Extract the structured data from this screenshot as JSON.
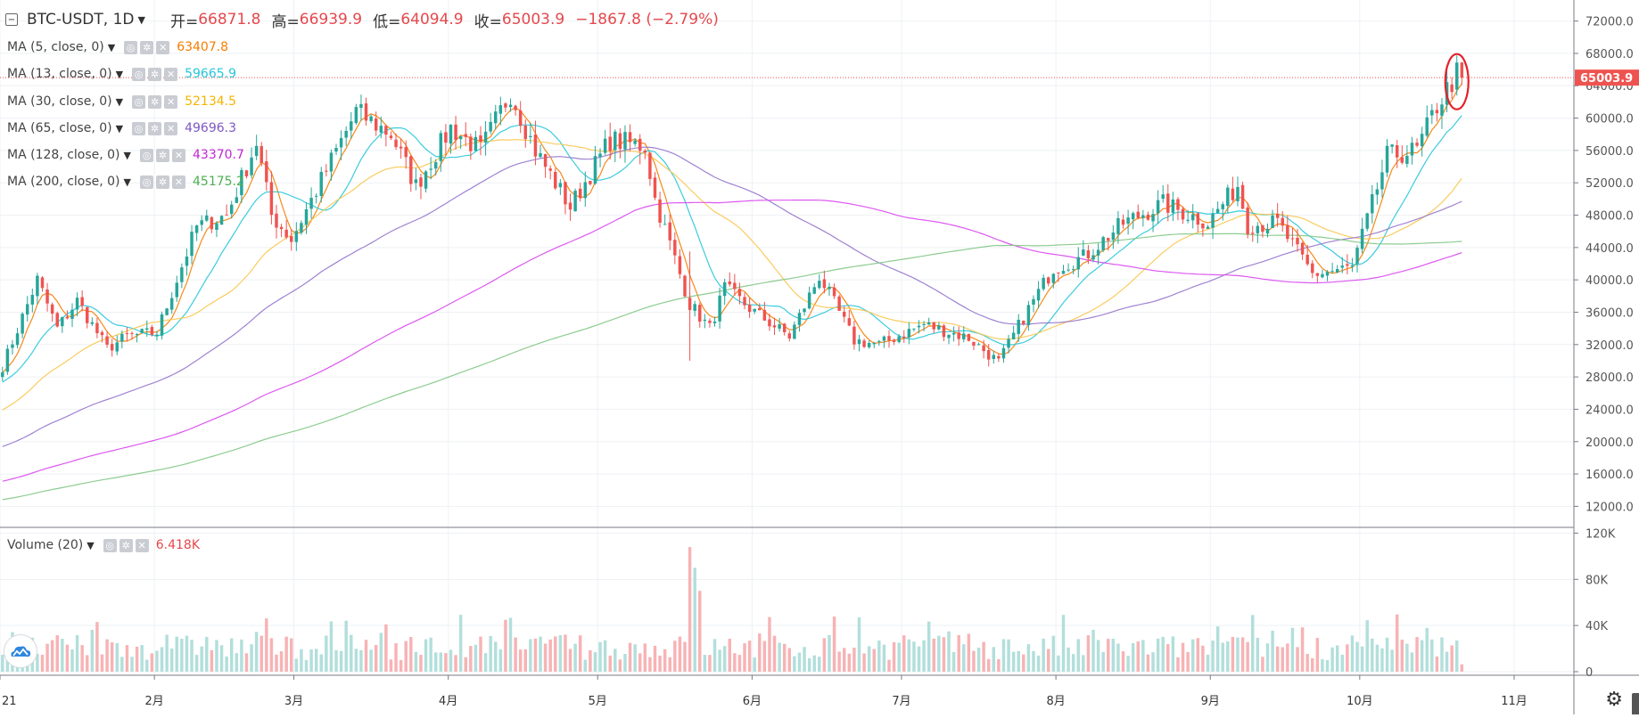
{
  "header": {
    "symbol": "BTC-USDT",
    "interval": "1D",
    "open_label": "开=",
    "open_value": "66871.8",
    "high_label": "高=",
    "high_value": "66939.9",
    "low_label": "低=",
    "low_value": "64094.9",
    "close_label": "收=",
    "close_value": "65003.9",
    "change": "−1867.8 (−2.79%)"
  },
  "indicators": [
    {
      "label": "MA (5, close, 0)",
      "value": "63407.8",
      "color": "#f57c00"
    },
    {
      "label": "MA (13, close, 0)",
      "value": "59665.9",
      "color": "#26c6da"
    },
    {
      "label": "MA (30, close, 0)",
      "value": "52134.5",
      "color": "#f9c74f"
    },
    {
      "label": "MA (65, close, 0)",
      "value": "49696.3",
      "color": "#7e57c2"
    },
    {
      "label": "MA (128, close, 0)",
      "value": "43370.7",
      "color": "#c026d3"
    },
    {
      "label": "MA (200, close, 0)",
      "value": "45175.2",
      "color": "#4caf50"
    }
  ],
  "volume_indicator": {
    "label": "Volume (20)",
    "value": "6.418K",
    "color": "#e5484d"
  },
  "price_axis_labels": [
    "72000.0",
    "68000.0",
    "64000.0",
    "60000.0",
    "56000.0",
    "52000.0",
    "48000.0",
    "44000.0",
    "40000.0",
    "36000.0",
    "32000.0",
    "28000.0",
    "24000.0",
    "20000.0",
    "16000.0",
    "12000.0"
  ],
  "last_price_tag": "65003.9",
  "volume_axis_labels": [
    "120K",
    "80K",
    "40K",
    "0"
  ],
  "time_axis_labels": [
    "21",
    "2月",
    "3月",
    "4月",
    "5月",
    "6月",
    "7月",
    "8月",
    "9月",
    "10月",
    "11月"
  ],
  "colors": {
    "up": "#26a69a",
    "down": "#ef5350",
    "up_vol": "#b2dfdb",
    "down_vol": "#f7b3b5",
    "highlight_circle": "#e5202a"
  },
  "icons": [
    "collapse-icon",
    "eye-icon",
    "settings-icon",
    "close-icon",
    "chevron-down-icon",
    "gear-icon",
    "logo-icon"
  ],
  "chart_data": {
    "type": "candlestick",
    "title": "BTC-USDT, 1D",
    "x_tick_labels": [
      "21",
      "2月",
      "3月",
      "4月",
      "5月",
      "6月",
      "7月",
      "8月",
      "9月",
      "10月",
      "11月"
    ],
    "x_range": [
      "2021-01-01",
      "2021-11-13"
    ],
    "y_range": [
      9400,
      74600
    ],
    "volume_range": [
      0,
      125000
    ],
    "last_price": 65003.9,
    "close_anchors": [
      [
        "2021-01-01",
        29300
      ],
      [
        "2021-01-08",
        40000
      ],
      [
        "2021-01-12",
        34000
      ],
      [
        "2021-01-16",
        37400
      ],
      [
        "2021-01-22",
        31500
      ],
      [
        "2021-01-26",
        33000
      ],
      [
        "2021-02-01",
        33500
      ],
      [
        "2021-02-09",
        46600
      ],
      [
        "2021-02-15",
        48000
      ],
      [
        "2021-02-21",
        57000
      ],
      [
        "2021-02-24",
        48000
      ],
      [
        "2021-02-28",
        45000
      ],
      [
        "2021-03-13",
        60800
      ],
      [
        "2021-03-20",
        58000
      ],
      [
        "2021-03-25",
        51600
      ],
      [
        "2021-04-01",
        58800
      ],
      [
        "2021-04-07",
        56000
      ],
      [
        "2021-04-13",
        63200
      ],
      [
        "2021-04-18",
        56000
      ],
      [
        "2021-04-25",
        49000
      ],
      [
        "2021-05-03",
        57300
      ],
      [
        "2021-05-10",
        56500
      ],
      [
        "2021-05-12",
        50000
      ],
      [
        "2021-05-19",
        37000
      ],
      [
        "2021-05-23",
        34000
      ],
      [
        "2021-05-26",
        39000
      ],
      [
        "2021-06-01",
        36000
      ],
      [
        "2021-06-08",
        33000
      ],
      [
        "2021-06-14",
        40500
      ],
      [
        "2021-06-21",
        32500
      ],
      [
        "2021-06-26",
        32000
      ],
      [
        "2021-07-05",
        34500
      ],
      [
        "2021-07-14",
        32800
      ],
      [
        "2021-07-20",
        29800
      ],
      [
        "2021-07-25",
        35400
      ],
      [
        "2021-07-31",
        41500
      ],
      [
        "2021-08-06",
        42800
      ],
      [
        "2021-08-14",
        47000
      ],
      [
        "2021-08-22",
        49400
      ],
      [
        "2021-08-31",
        47100
      ],
      [
        "2021-09-06",
        51700
      ],
      [
        "2021-09-08",
        46800
      ],
      [
        "2021-09-14",
        47000
      ],
      [
        "2021-09-21",
        40700
      ],
      [
        "2021-09-29",
        41500
      ],
      [
        "2021-10-06",
        55300
      ],
      [
        "2021-10-12",
        56000
      ],
      [
        "2021-10-16",
        61500
      ],
      [
        "2021-10-20",
        65500
      ],
      [
        "2021-10-21",
        65003.9
      ]
    ],
    "series": [
      {
        "name": "MA (5, close, 0)",
        "last": 63407.8
      },
      {
        "name": "MA (13, close, 0)",
        "last": 59665.9
      },
      {
        "name": "MA (30, close, 0)",
        "last": 52134.5
      },
      {
        "name": "MA (65, close, 0)",
        "last": 49696.3
      },
      {
        "name": "MA (128, close, 0)",
        "last": 43370.7
      },
      {
        "name": "MA (200, close, 0)",
        "last": 45175.2
      }
    ],
    "volume_spikes": [
      [
        "2021-05-19",
        108000
      ],
      [
        "2021-05-20",
        90000
      ],
      [
        "2021-05-21",
        70000
      ],
      [
        "2021-06-22",
        47000
      ]
    ],
    "volume_last": 6418,
    "grid": true
  }
}
